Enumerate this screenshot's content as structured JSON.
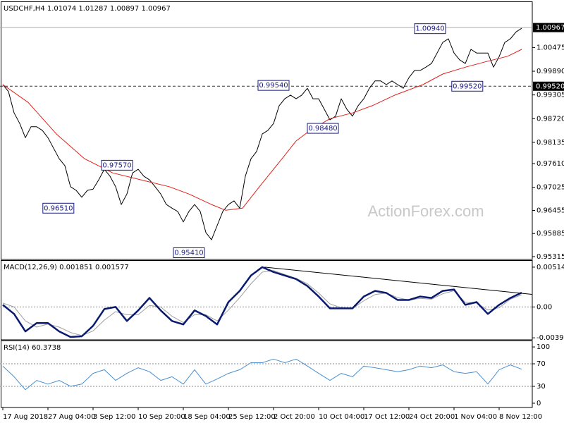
{
  "chart_data": [
    {
      "type": "line",
      "title": "USDCHF,H4 1.01074 1.01287 1.00897 1.00967",
      "watermark": "ActionForex.com",
      "xlim": [
        -0.5,
        93.875
      ],
      "ylim": [
        0.95245,
        1.01578
      ],
      "yticks": [
        1.00475,
        {
          "value": 0.9989,
          "label": "0.99890"
        },
        0.99305,
        {
          "value": 0.9872,
          "label": "0.98720"
        },
        0.98135,
        {
          "value": 0.9761,
          "label": "0.97610"
        },
        0.97025,
        0.96455,
        0.95885,
        0.95315
      ],
      "hlines": [
        {
          "value": 1.00967,
          "label": "1.00967",
          "style": "solid"
        },
        {
          "value": 0.9952,
          "label": "0.99520",
          "style": "dashed"
        }
      ],
      "series": [
        {
          "color": "#000000",
          "width": 1,
          "values": [
            0.9956,
            0.9939,
            0.9886,
            0.986,
            0.9825,
            0.9852,
            0.9852,
            0.9843,
            0.9825,
            0.9799,
            0.9773,
            0.9756,
            0.9704,
            0.9695,
            0.9678,
            0.9695,
            0.9698,
            0.9721,
            0.9747,
            0.973,
            0.9704,
            0.966,
            0.9686,
            0.9738,
            0.9747,
            0.973,
            0.9721,
            0.9704,
            0.9686,
            0.966,
            0.9651,
            0.9643,
            0.9617,
            0.9643,
            0.966,
            0.9643,
            0.9591,
            0.9573,
            0.9608,
            0.9643,
            0.966,
            0.9669,
            0.9651,
            0.973,
            0.9773,
            0.9791,
            0.9834,
            0.9843,
            0.986,
            0.9904,
            0.9921,
            0.993,
            0.9921,
            0.993,
            0.9947,
            0.9921,
            0.9921,
            0.9895,
            0.9869,
            0.9878,
            0.9921,
            0.9895,
            0.9878,
            0.9904,
            0.9921,
            0.9947,
            0.9965,
            0.9965,
            0.9956,
            0.9965,
            0.9956,
            0.9947,
            0.9973,
            0.9991,
            0.9991,
            0.9999,
            1.0008,
            1.0034,
            1.006,
            1.0069,
            1.0034,
            1.0017,
            1.0008,
            1.0043,
            1.0034,
            1.0034,
            1.0034,
            0.9999,
            1.0025,
            1.006,
            1.0069,
            1.0086,
            1.0095
          ]
        },
        {
          "color": "#e0201a",
          "width": 1,
          "x": [
            0,
            4.5,
            9.5,
            14.5,
            19.5,
            24.5,
            29.5,
            33,
            37,
            39.5,
            42.5,
            45.5,
            49.5,
            52,
            54.5,
            58,
            62,
            65.5,
            69.5,
            74.5,
            78,
            82,
            85.5,
            89.5,
            92
          ],
          "values": [
            0.9956,
            0.9912,
            0.9834,
            0.9773,
            0.9738,
            0.9721,
            0.9704,
            0.9686,
            0.966,
            0.9646,
            0.9651,
            0.9704,
            0.9773,
            0.9817,
            0.9843,
            0.9872,
            0.9886,
            0.9904,
            0.993,
            0.9956,
            0.9982,
            0.9999,
            1.0012,
            1.0026,
            1.0043
          ]
        }
      ],
      "annotations": [
        {
          "label": "1.00940",
          "value": 1.0094,
          "x": 78.5
        },
        {
          "label": "0.99540",
          "value": 0.9954,
          "x": 50.75
        },
        {
          "label": "0.98480",
          "value": 0.9848,
          "x": 59.5
        },
        {
          "label": "0.97570",
          "value": 0.9757,
          "x": 23
        },
        {
          "label": "0.96510",
          "value": 0.9651,
          "x": 12.6
        },
        {
          "label": "0.95410",
          "value": 0.9541,
          "x": 35.75
        },
        {
          "label": "0.99520",
          "value": 0.9952,
          "x": 85.1
        }
      ]
    },
    {
      "type": "line",
      "title": "MACD(12,26,9) 0.001851 0.001577",
      "xlim": [
        -0.5,
        93.875
      ],
      "ylim": [
        -0.004244,
        0.005867
      ],
      "yticks": [
        0.005145,
        {
          "value": 0,
          "label": "0.00"
        },
        -0.003989
      ],
      "levels": [
        0
      ],
      "series": [
        {
          "color": "#a0a0a0",
          "width": 1,
          "x": [
            0,
            2,
            4,
            6,
            8,
            10,
            12,
            14,
            16,
            18,
            20,
            22,
            24,
            26,
            28,
            30,
            32,
            34,
            36,
            38,
            40,
            42,
            44,
            46,
            48,
            50,
            52,
            54,
            56,
            58,
            60,
            62,
            64,
            66,
            68,
            70,
            72,
            74,
            76,
            78,
            80,
            82,
            84,
            86,
            88,
            90,
            92
          ],
          "values": [
            0.0005,
            0,
            -0.0018,
            -0.0026,
            -0.0022,
            -0.0026,
            -0.0033,
            -0.0037,
            -0.0031,
            -0.0017,
            -0.0006,
            -0.001,
            -0.001,
            0.0002,
            0,
            -0.0012,
            -0.002,
            -0.001,
            -0.001,
            -0.0018,
            -0.0004,
            0.0012,
            0.003,
            0.0045,
            0.0047,
            0.0042,
            0.0037,
            0.003,
            0.0018,
            0.0004,
            -0.0001,
            -0.0002,
            0.0008,
            0.0016,
            0.0018,
            0.0012,
            0.0009,
            0.0011,
            0.001,
            0.0017,
            0.0021,
            0.0006,
            0.0005,
            -0.0004,
            -0.0001,
            0.001,
            0.00158
          ]
        },
        {
          "color": "#0a1a6e",
          "width": 2.5,
          "x": [
            0,
            2,
            4,
            6,
            8,
            10,
            12,
            14,
            16,
            18,
            20,
            22,
            24,
            26,
            28,
            30,
            32,
            34,
            36,
            38,
            40,
            42,
            44,
            46,
            48,
            50,
            52,
            54,
            56,
            58,
            60,
            62,
            64,
            66,
            68,
            70,
            72,
            74,
            76,
            78,
            80,
            82,
            84,
            86,
            88,
            90,
            92
          ],
          "values": [
            0.00027,
            -0.0009,
            -0.00316,
            -0.00208,
            -0.00208,
            -0.00316,
            -0.00388,
            -0.00379,
            -0.00244,
            -0.00027,
            0,
            -0.00181,
            -0.00045,
            0.00117,
            -0.00045,
            -0.00181,
            -0.00226,
            -0.00045,
            -0.00117,
            -0.00226,
            0.00063,
            0.00208,
            0.00406,
            0.00515,
            0.00452,
            0.00406,
            0.00361,
            0.00271,
            0.00135,
            -0.00018,
            -0.00018,
            -0.00018,
            0.00135,
            0.00208,
            0.00181,
            0.0009,
            0.0009,
            0.00135,
            0.00117,
            0.00208,
            0.00226,
            0.00027,
            0.00063,
            -0.0009,
            0.00027,
            0.00117,
            0.00185
          ]
        }
      ],
      "trendlines": [
        {
          "x": [
            46.4,
            93.8
          ],
          "values": [
            0.00515,
            0.00163
          ]
        }
      ]
    },
    {
      "type": "line",
      "title": "RSI(14) 60.3738",
      "xlim": [
        -0.5,
        93.875
      ],
      "ylim": [
        -7.6,
        108.9
      ],
      "yticks": [
        100,
        70,
        30,
        0
      ],
      "levels": [
        70,
        30
      ],
      "xticks": [
        {
          "value": 0,
          "label": "17 Aug 2018"
        },
        {
          "value": 8,
          "label": "27 Aug 04:00"
        },
        {
          "value": 16,
          "label": "3 Sep 12:00"
        },
        {
          "value": 24,
          "label": "10 Sep 20:00"
        },
        {
          "value": 32,
          "label": "18 Sep 04:00"
        },
        {
          "value": 40,
          "label": "25 Sep 12:00"
        },
        {
          "value": 48,
          "label": "2 Oct 20:00"
        },
        {
          "value": 56,
          "label": "10 Oct 04:00"
        },
        {
          "value": 64,
          "label": "17 Oct 12:00"
        },
        {
          "value": 72,
          "label": "24 Oct 20:00"
        },
        {
          "value": 80,
          "label": "1 Nov 04:00"
        },
        {
          "value": 88,
          "label": "8 Nov 12:00"
        }
      ],
      "series": [
        {
          "color": "#4a90d0",
          "width": 1,
          "x": [
            0,
            2,
            4,
            6,
            8,
            10,
            12,
            14,
            16,
            18,
            20,
            22,
            24,
            26,
            28,
            30,
            32,
            34,
            36,
            38,
            40,
            42,
            44,
            46,
            48,
            50,
            52,
            54,
            56,
            58,
            60,
            62,
            64,
            66,
            68,
            70,
            72,
            74,
            76,
            78,
            80,
            82,
            84,
            86,
            88,
            90,
            92
          ],
          "values": [
            65.8,
            47,
            24,
            40.5,
            34,
            40.5,
            30,
            34,
            53,
            59.5,
            40.5,
            53,
            63,
            56,
            40.5,
            47,
            34,
            59.5,
            34,
            43,
            53,
            59.5,
            72,
            72,
            78.5,
            72,
            78.5,
            66,
            53,
            40.5,
            53,
            47,
            66,
            63,
            59.5,
            56,
            59.5,
            66,
            63,
            68,
            56,
            53,
            56,
            34,
            59.5,
            68,
            60.37
          ]
        }
      ]
    }
  ]
}
